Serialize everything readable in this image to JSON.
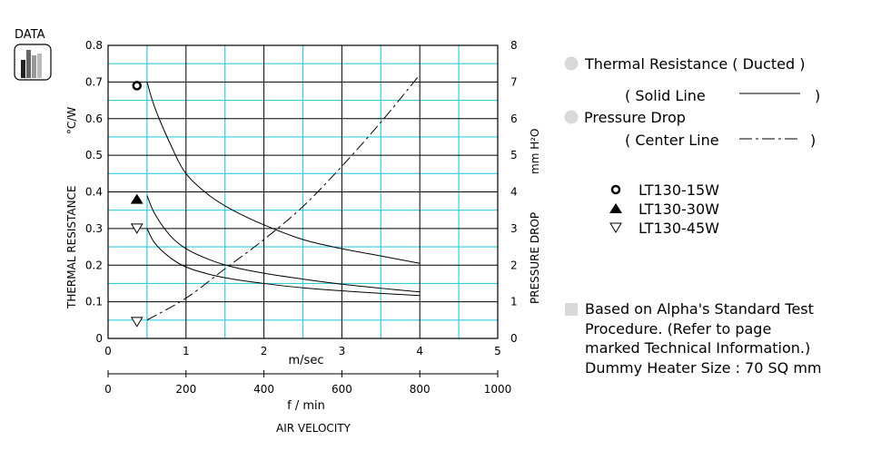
{
  "badge": {
    "label": "DATA"
  },
  "legend": {
    "thermal_title": "Thermal Resistance ( Ducted )",
    "solid_line_open": "( Solid Line",
    "solid_line_close": ")",
    "pressure_title": "Pressure Drop",
    "center_line_open": "( Center Line",
    "center_line_close": ")",
    "models": [
      {
        "symbol": "open-circle",
        "label": "LT130-15W"
      },
      {
        "symbol": "filled-triangle",
        "label": "LT130-30W"
      },
      {
        "symbol": "open-triangle-down",
        "label": "LT130-45W"
      }
    ],
    "notes": [
      "Based on Alpha's Standard Test",
      "Procedure.  (Refer to page",
      "marked Technical Information.)",
      "Dummy Heater Size :  70 SQ mm"
    ]
  },
  "colors": {
    "grid_major": "#000000",
    "grid_minor": "#33ccdd",
    "curve": "#000000",
    "bullet": "#d9d9d9"
  },
  "chart_data": {
    "type": "line",
    "xlabel": "m/sec",
    "xlim": [
      0,
      5
    ],
    "x_ticks": [
      "0",
      "1",
      "2",
      "3",
      "4",
      "5"
    ],
    "x2_label": "f / min",
    "x2lim": [
      0,
      1000
    ],
    "x2_ticks": [
      "0",
      "200",
      "400",
      "600",
      "800",
      "1000"
    ],
    "x_title": "AIR VELOCITY",
    "y_left_label": "THERMAL  RESISTANCE",
    "y_left_unit": "°C/W",
    "ylim_left": [
      0,
      0.8
    ],
    "y_left_ticks": [
      "0",
      "0.1",
      "0.2",
      "0.3",
      "0.4",
      "0.5",
      "0.6",
      "0.7",
      "0.8"
    ],
    "y_right_label": "PRESSURE  DROP",
    "y_right_unit": "mm H²O",
    "ylim_right": [
      0,
      8
    ],
    "y_right_ticks": [
      "0",
      "1",
      "2",
      "3",
      "4",
      "5",
      "6",
      "7",
      "8"
    ],
    "grid": true,
    "series": [
      {
        "name": "LT130-15W",
        "axis": "left",
        "style": "solid",
        "x": [
          0.5,
          0.6,
          0.8,
          1.0,
          1.3,
          1.6,
          2.0,
          2.5,
          3.0,
          3.5,
          4.0
        ],
        "y": [
          0.7,
          0.63,
          0.53,
          0.45,
          0.39,
          0.35,
          0.31,
          0.27,
          0.245,
          0.225,
          0.205
        ]
      },
      {
        "name": "LT130-30W",
        "axis": "left",
        "style": "solid",
        "x": [
          0.5,
          0.6,
          0.8,
          1.0,
          1.3,
          1.6,
          2.0,
          2.5,
          3.0,
          3.5,
          4.0
        ],
        "y": [
          0.39,
          0.34,
          0.28,
          0.245,
          0.215,
          0.195,
          0.178,
          0.162,
          0.148,
          0.137,
          0.127
        ]
      },
      {
        "name": "LT130-45W",
        "axis": "left",
        "style": "solid",
        "x": [
          0.5,
          0.6,
          0.8,
          1.0,
          1.3,
          1.6,
          2.0,
          2.5,
          3.0,
          3.5,
          4.0
        ],
        "y": [
          0.3,
          0.26,
          0.22,
          0.195,
          0.175,
          0.162,
          0.15,
          0.138,
          0.13,
          0.123,
          0.117
        ]
      },
      {
        "name": "Pressure Drop",
        "axis": "right",
        "style": "dash-dot",
        "x": [
          0.5,
          1.0,
          1.5,
          2.0,
          2.5,
          3.0,
          3.5,
          4.0
        ],
        "y": [
          0.5,
          1.1,
          1.9,
          2.7,
          3.6,
          4.7,
          5.9,
          7.2
        ]
      }
    ],
    "markers": [
      {
        "name": "LT130-15W",
        "symbol": "open-circle",
        "x": 0.37,
        "y": 0.69
      },
      {
        "name": "LT130-30W",
        "symbol": "filled-triangle",
        "x": 0.37,
        "y": 0.38
      },
      {
        "name": "LT130-45W",
        "symbol": "open-triangle-down",
        "x": 0.37,
        "y": 0.3
      },
      {
        "name": "Pressure Drop",
        "symbol": "open-triangle-down",
        "x": 0.37,
        "y": 0.045
      }
    ]
  }
}
